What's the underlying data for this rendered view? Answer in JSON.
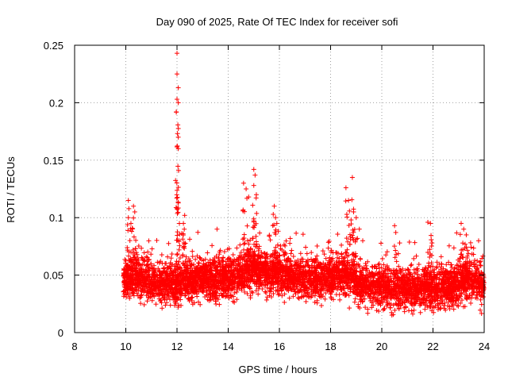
{
  "chart_data": {
    "type": "scatter",
    "title": "Day 090 of 2025, Rate Of TEC Index for receiver sofi",
    "xlabel": "GPS time / hours",
    "ylabel": "ROTI / TECUs",
    "xlim": [
      8,
      24
    ],
    "ylim": [
      0,
      0.25
    ],
    "xticks": [
      8,
      10,
      12,
      14,
      16,
      18,
      20,
      22,
      24
    ],
    "xtick_labels": [
      "8",
      "10",
      "12",
      "14",
      "16",
      "18",
      "20",
      "22",
      "24"
    ],
    "yticks": [
      0,
      0.05,
      0.1,
      0.15,
      0.2,
      0.25
    ],
    "ytick_labels": [
      "0",
      "0.05",
      "0.1",
      "0.15",
      "0.2",
      "0.25"
    ],
    "grid": true,
    "marker": "+",
    "series": [
      {
        "name": "ROTI",
        "color": "#ff0000",
        "baseline_profile": [
          [
            9.9,
            0.048
          ],
          [
            10.3,
            0.05
          ],
          [
            11.0,
            0.045
          ],
          [
            12.0,
            0.042
          ],
          [
            12.5,
            0.047
          ],
          [
            13.5,
            0.045
          ],
          [
            14.5,
            0.05
          ],
          [
            15.0,
            0.055
          ],
          [
            15.8,
            0.052
          ],
          [
            16.5,
            0.048
          ],
          [
            17.5,
            0.047
          ],
          [
            18.5,
            0.05
          ],
          [
            19.5,
            0.04
          ],
          [
            20.5,
            0.038
          ],
          [
            21.5,
            0.038
          ],
          [
            22.5,
            0.04
          ],
          [
            23.3,
            0.045
          ],
          [
            24.0,
            0.042
          ]
        ],
        "spikes": [
          [
            10.1,
            0.115
          ],
          [
            10.1,
            0.1
          ],
          [
            10.2,
            0.095
          ],
          [
            10.3,
            0.11
          ],
          [
            10.35,
            0.105
          ],
          [
            12.0,
            0.243
          ],
          [
            12.0,
            0.225
          ],
          [
            12.05,
            0.213
          ],
          [
            12.0,
            0.203
          ],
          [
            12.05,
            0.2
          ],
          [
            12.05,
            0.17
          ],
          [
            12.05,
            0.16
          ],
          [
            12.3,
            0.102
          ],
          [
            12.25,
            0.095
          ],
          [
            14.6,
            0.13
          ],
          [
            14.7,
            0.125
          ],
          [
            14.8,
            0.118
          ],
          [
            15.0,
            0.142
          ],
          [
            15.05,
            0.137
          ],
          [
            15.0,
            0.128
          ],
          [
            15.1,
            0.12
          ],
          [
            15.8,
            0.11
          ],
          [
            15.85,
            0.1
          ],
          [
            15.9,
            0.095
          ],
          [
            18.6,
            0.126
          ],
          [
            18.7,
            0.115
          ],
          [
            18.85,
            0.135
          ],
          [
            18.9,
            0.105
          ],
          [
            18.8,
            0.098
          ],
          [
            19.0,
            0.1
          ],
          [
            20.5,
            0.093
          ],
          [
            21.8,
            0.096
          ],
          [
            21.9,
            0.095
          ],
          [
            23.1,
            0.095
          ],
          [
            23.2,
            0.09
          ],
          [
            23.3,
            0.085
          ]
        ]
      }
    ]
  }
}
